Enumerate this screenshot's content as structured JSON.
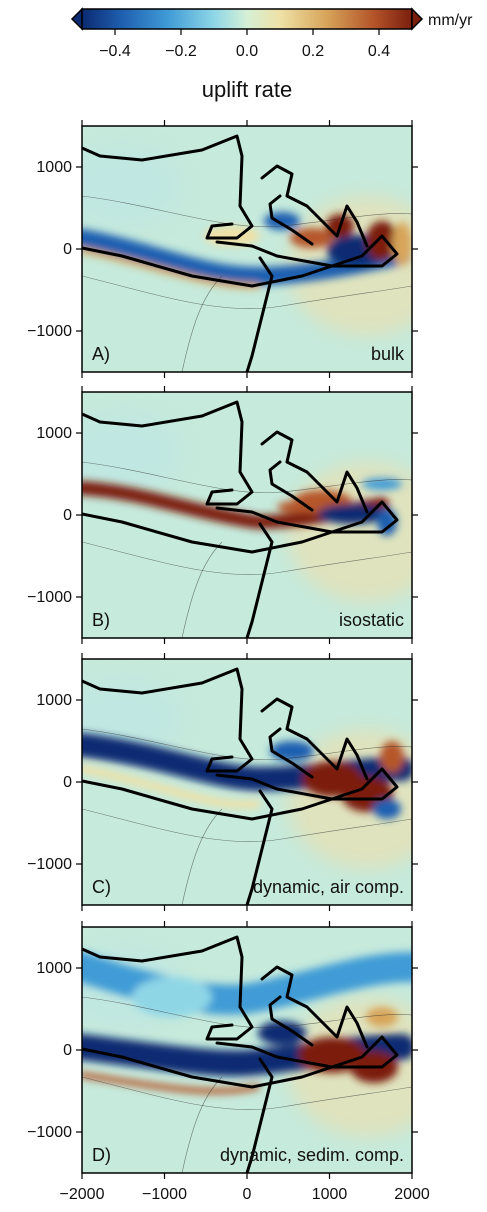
{
  "colorbar": {
    "unit": "mm/yr",
    "title": "uplift rate",
    "range": [
      -0.5,
      0.5
    ],
    "ticks": [
      -0.4,
      -0.2,
      0.0,
      0.2,
      0.4
    ],
    "tick_labels": [
      "−0.4",
      "−0.2",
      "0.0",
      "0.2",
      "0.4"
    ],
    "colors": [
      "#0b2a72",
      "#1f5fb0",
      "#3f9bd6",
      "#8ed6e6",
      "#d5f0d6",
      "#efe1a6",
      "#d7a55a",
      "#b5562a",
      "#7b1e0e"
    ]
  },
  "chart_data": [
    {
      "type": "heatmap",
      "panel_label": "A)",
      "corner_label": "bulk",
      "xlim": [
        -2000,
        2000
      ],
      "ylim": [
        -1500,
        1500
      ],
      "yticks": [
        1000,
        0,
        -1000
      ],
      "ytick_labels": [
        "1000",
        "0",
        "−1000"
      ]
    },
    {
      "type": "heatmap",
      "panel_label": "B)",
      "corner_label": "isostatic",
      "xlim": [
        -2000,
        2000
      ],
      "ylim": [
        -1500,
        1500
      ],
      "yticks": [
        1000,
        0,
        -1000
      ],
      "ytick_labels": [
        "1000",
        "0",
        "−1000"
      ]
    },
    {
      "type": "heatmap",
      "panel_label": "C)",
      "corner_label": "dynamic, air comp.",
      "xlim": [
        -2000,
        2000
      ],
      "ylim": [
        -1500,
        1500
      ],
      "yticks": [
        1000,
        0,
        -1000
      ],
      "ytick_labels": [
        "1000",
        "0",
        "−1000"
      ]
    },
    {
      "type": "heatmap",
      "panel_label": "D)",
      "corner_label": "dynamic, sedim. comp.",
      "xlim": [
        -2000,
        2000
      ],
      "ylim": [
        -1500,
        1500
      ],
      "yticks": [
        1000,
        0,
        -1000
      ],
      "ytick_labels": [
        "1000",
        "0",
        "−1000"
      ],
      "xticks": [
        -2000,
        -1000,
        0,
        1000,
        2000
      ],
      "xtick_labels": [
        "−2000",
        "−1000",
        "0",
        "1000",
        "2000"
      ]
    }
  ]
}
